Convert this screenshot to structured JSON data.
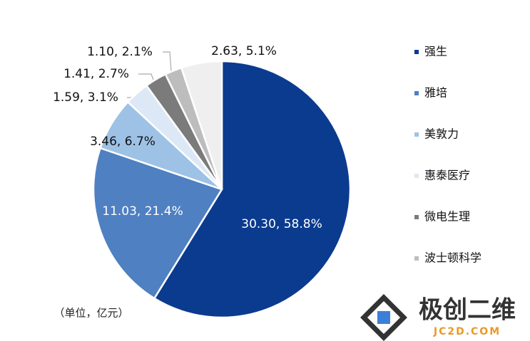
{
  "chart_data": {
    "type": "pie",
    "categories": [
      "强生",
      "雅培",
      "美敦力",
      "惠泰医疗",
      "微电生理",
      "波士顿科学",
      null
    ],
    "values": [
      30.3,
      11.03,
      3.46,
      1.59,
      1.41,
      1.1,
      2.63
    ],
    "value_labels": [
      "30.30, 58.8%",
      "11.03, 21.4%",
      "3.46, 6.7%",
      "1.59, 3.1%",
      "1.41, 2.7%",
      "1.10, 2.1%",
      "2.63, 5.1%"
    ],
    "colors": [
      "#0b3b8f",
      "#4f80c1",
      "#9dc2e6",
      "#dce8f6",
      "#7b7b7b",
      "#bdbdbd",
      "#efefef"
    ],
    "annotation": "（单位，亿元）",
    "watermark": {
      "title": "极创二维",
      "url": "JC2D.COM"
    }
  }
}
